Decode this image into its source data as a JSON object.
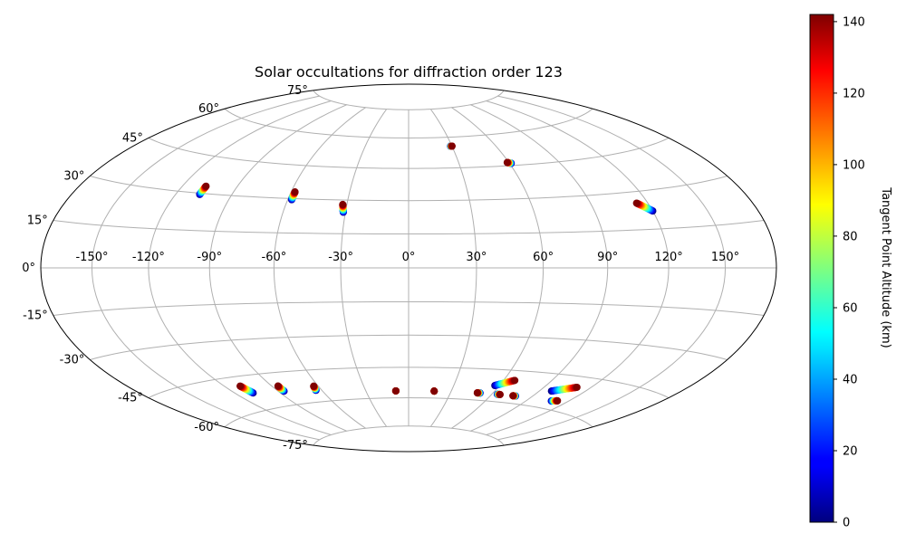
{
  "chart_data": {
    "type": "scatter",
    "projection": "hammer",
    "title": "Solar occultations for diffraction order 123",
    "grid": true,
    "longitude_ticks": [
      -150,
      -120,
      -90,
      -60,
      -30,
      0,
      30,
      60,
      90,
      120,
      150
    ],
    "longitude_tick_labels": [
      "-150°",
      "-120°",
      "-90°",
      "-60°",
      "-30°",
      "0°",
      "30°",
      "60°",
      "90°",
      "120°",
      "150°"
    ],
    "latitude_ticks": [
      75,
      60,
      45,
      30,
      15,
      0,
      -15,
      -30,
      -45,
      -60,
      -75
    ],
    "latitude_tick_labels": [
      "75°",
      "60°",
      "45°",
      "30°",
      "15°",
      "0°",
      "-15°",
      "-30°",
      "-45°",
      "-60°",
      "-75°"
    ],
    "colorbar": {
      "label": "Tangent Point Altitude (km)",
      "range": [
        0,
        142
      ],
      "ticks": [
        0,
        20,
        40,
        60,
        80,
        100,
        120,
        140
      ],
      "colormap": "jet"
    },
    "tracks": [
      {
        "lon0": -107,
        "lat0": 29.5,
        "lon1": -107,
        "lat1": 33
      },
      {
        "lon0": -58,
        "lat0": 29.5,
        "lon1": -58,
        "lat1": 33
      },
      {
        "lon0": -31,
        "lat0": 24.5,
        "lon1": -32,
        "lat1": 28
      },
      {
        "lon0": 120,
        "lat0": 22,
        "lon1": 114,
        "lat1": 25.5
      },
      {
        "lon0": 61,
        "lat0": 46,
        "lon1": 59,
        "lat1": 46.5
      },
      {
        "lon0": 29,
        "lat0": 55.5,
        "lon1": 30,
        "lat1": 55.5
      },
      {
        "lon0": -108,
        "lat0": -52.5,
        "lon1": -110,
        "lat1": -49
      },
      {
        "lon0": -86,
        "lat0": -53.5,
        "lon1": -86,
        "lat1": -51
      },
      {
        "lon0": -64,
        "lat0": -54.5,
        "lon1": -63,
        "lat1": -52.5
      },
      {
        "lon0": -9,
        "lat0": -56.5,
        "lon1": -9,
        "lat1": -56.5
      },
      {
        "lon0": 18,
        "lat0": -56.5,
        "lon1": 18,
        "lat1": -56.5
      },
      {
        "lon0": 51,
        "lat0": -56.5,
        "lon1": 49,
        "lat1": -56.5
      },
      {
        "lon0": 64,
        "lat0": -56.5,
        "lon1": 66,
        "lat1": -56.5
      },
      {
        "lon0": 78,
        "lat0": -56.5,
        "lon1": 76,
        "lat1": -56.5
      },
      {
        "lon0": 57,
        "lat0": -52.5,
        "lon1": 67,
        "lat1": -49.5
      },
      {
        "lon0": 98,
        "lat0": -52.5,
        "lon1": 111,
        "lat1": -49.5
      },
      {
        "lon0": 108,
        "lat0": -56.5,
        "lon1": 112,
        "lat1": -56
      }
    ]
  }
}
